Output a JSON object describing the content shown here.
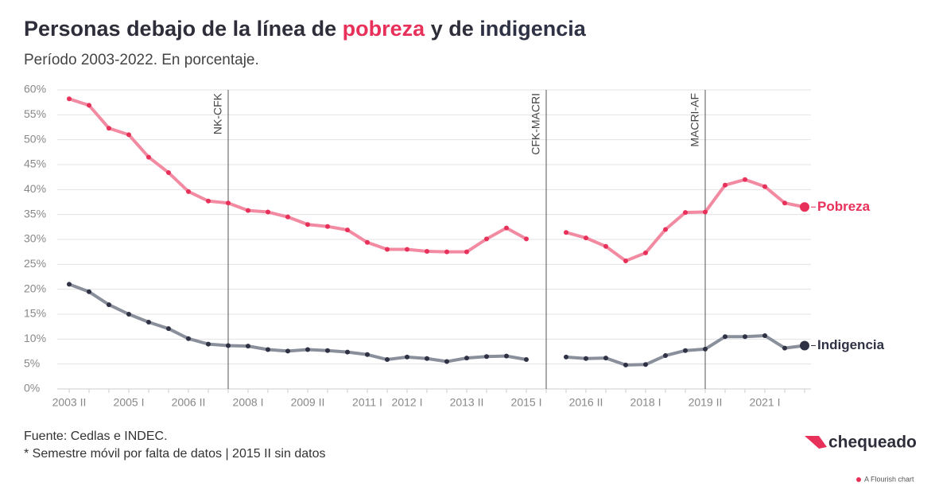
{
  "chart_data": {
    "type": "line",
    "title_parts": [
      {
        "text": "Personas debajo de la línea de ",
        "color": "#2e2e3a"
      },
      {
        "text": "pobreza",
        "color": "#e8315a"
      },
      {
        "text": " y de ",
        "color": "#2e2e3a"
      },
      {
        "text": "indigencia",
        "color": "#2f3245"
      }
    ],
    "subtitle": "Período 2003-2022. En porcentaje.",
    "categories": [
      "2003 II",
      null,
      null,
      "2005 I",
      null,
      null,
      "2006 II",
      null,
      null,
      "2008 I",
      null,
      null,
      "2009 II",
      null,
      null,
      "2011 I",
      null,
      "2012 I",
      null,
      null,
      "2013 II",
      null,
      null,
      "2015 I",
      null,
      null,
      "2016 II",
      null,
      null,
      "2018 I",
      null,
      null,
      "2019 II",
      null,
      null,
      "2021 I",
      null,
      null
    ],
    "series": [
      {
        "name": "Pobreza",
        "color": "#e8315a",
        "line_color": "#f28aa2",
        "values": [
          58.2,
          56.9,
          52.3,
          51.0,
          46.5,
          43.4,
          39.6,
          37.7,
          37.3,
          35.8,
          35.5,
          34.5,
          33.0,
          32.6,
          31.9,
          29.4,
          28.0,
          28.0,
          27.6,
          27.5,
          27.5,
          30.1,
          32.3,
          30.1,
          null,
          31.4,
          30.3,
          28.6,
          25.7,
          27.3,
          32.0,
          35.4,
          35.5,
          40.9,
          42.0,
          40.6,
          37.3,
          36.5
        ]
      },
      {
        "name": "Indigencia",
        "color": "#2f3245",
        "line_color": "#8a8f9c",
        "values": [
          21.0,
          19.5,
          16.9,
          15.0,
          13.4,
          12.1,
          10.1,
          9.0,
          8.7,
          8.6,
          7.9,
          7.6,
          7.9,
          7.7,
          7.4,
          6.9,
          5.9,
          6.4,
          6.1,
          5.5,
          6.2,
          6.5,
          6.6,
          5.9,
          null,
          6.4,
          6.1,
          6.2,
          4.8,
          4.9,
          6.7,
          7.7,
          8.0,
          10.5,
          10.5,
          10.7,
          8.2,
          8.7
        ]
      }
    ],
    "annotations": [
      {
        "text": "NK-CFK",
        "index": 8
      },
      {
        "text": "CFK-MACRI",
        "index": 24
      },
      {
        "text": "MACRI-AF",
        "index": 32
      }
    ],
    "ylim": [
      0,
      60
    ],
    "yticks": [
      {
        "value": 0,
        "label": "0%"
      },
      {
        "value": 5,
        "label": "5%"
      },
      {
        "value": 10,
        "label": "10%"
      },
      {
        "value": 15,
        "label": "15%"
      },
      {
        "value": 20,
        "label": "20%"
      },
      {
        "value": 25,
        "label": "25%"
      },
      {
        "value": 30,
        "label": "30%"
      },
      {
        "value": 35,
        "label": "35%"
      },
      {
        "value": 40,
        "label": "40%"
      },
      {
        "value": 45,
        "label": "45%"
      },
      {
        "value": 50,
        "label": "50%"
      },
      {
        "value": 55,
        "label": "55%"
      },
      {
        "value": 60,
        "label": "60%"
      }
    ],
    "grid": true,
    "source": "Fuente: Cedlas e INDEC.",
    "note": "* Semestre móvil por falta de datos | 2015 II sin datos",
    "logo": "chequeado",
    "credit": "A Flourish chart"
  }
}
